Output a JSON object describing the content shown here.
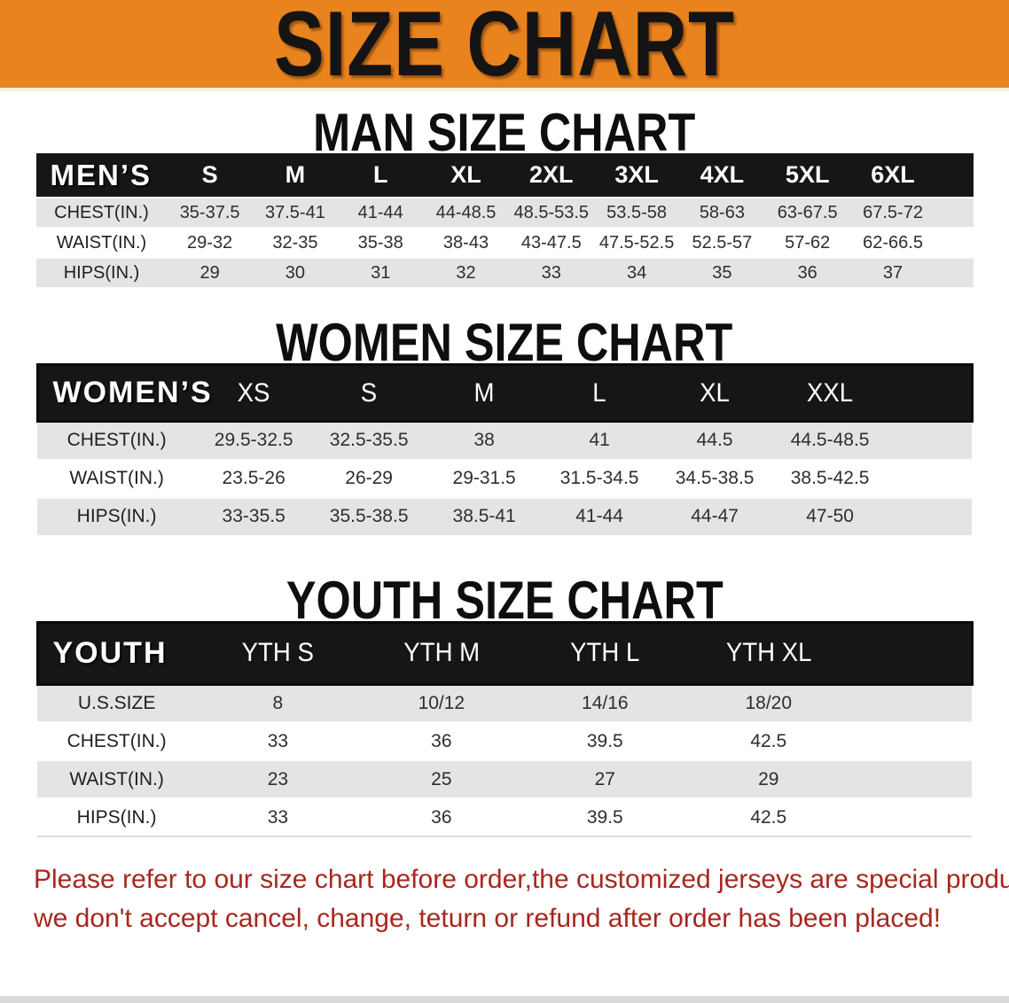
{
  "banner": {
    "title": "SIZE CHART",
    "bg_color": "#E9831E",
    "title_color": "#141414"
  },
  "colors": {
    "header_black": "#161616",
    "row_gray": "#E3E4E5",
    "row_white": "#FFFFFF",
    "footer_red": "#A7271E"
  },
  "sections": {
    "men": {
      "heading": "MAN SIZE CHART",
      "corner": "MEN’S",
      "sizes": [
        "S",
        "M",
        "L",
        "XL",
        "2XL",
        "3XL",
        "4XL",
        "5XL",
        "6XL"
      ],
      "rows": [
        {
          "label": "CHEST(IN.)",
          "values": [
            "35-37.5",
            "37.5-41",
            "41-44",
            "44-48.5",
            "48.5-53.5",
            "53.5-58",
            "58-63",
            "63-67.5",
            "67.5-72"
          ]
        },
        {
          "label": "WAIST(IN.)",
          "values": [
            "29-32",
            "32-35",
            "35-38",
            "38-43",
            "43-47.5",
            "47.5-52.5",
            "52.5-57",
            "57-62",
            "62-66.5"
          ]
        },
        {
          "label": "HIPS(IN.)",
          "values": [
            "29",
            "30",
            "31",
            "32",
            "33",
            "34",
            "35",
            "36",
            "37"
          ]
        }
      ]
    },
    "women": {
      "heading": "WOMEN SIZE CHART",
      "corner": "WOMEN’S",
      "sizes": [
        "XS",
        "S",
        "M",
        "L",
        "XL",
        "XXL"
      ],
      "rows": [
        {
          "label": "CHEST(IN.)",
          "values": [
            "29.5-32.5",
            "32.5-35.5",
            "38",
            "41",
            "44.5",
            "44.5-48.5"
          ]
        },
        {
          "label": "WAIST(IN.)",
          "values": [
            "23.5-26",
            "26-29",
            "29-31.5",
            "31.5-34.5",
            "34.5-38.5",
            "38.5-42.5"
          ]
        },
        {
          "label": "HIPS(IN.)",
          "values": [
            "33-35.5",
            "35.5-38.5",
            "38.5-41",
            "41-44",
            "44-47",
            "47-50"
          ]
        }
      ]
    },
    "youth": {
      "heading": "YOUTH SIZE CHART",
      "corner": "YOUTH",
      "sizes": [
        "YTH S",
        "YTH M",
        "YTH L",
        "YTH XL"
      ],
      "rows": [
        {
          "label": "U.S.SIZE",
          "values": [
            "8",
            "10/12",
            "14/16",
            "18/20"
          ]
        },
        {
          "label": "CHEST(IN.)",
          "values": [
            "33",
            "36",
            "39.5",
            "42.5"
          ]
        },
        {
          "label": "WAIST(IN.)",
          "values": [
            "23",
            "25",
            "27",
            "29"
          ]
        },
        {
          "label": "HIPS(IN.)",
          "values": [
            "33",
            "36",
            "39.5",
            "42.5"
          ]
        }
      ]
    }
  },
  "footer": {
    "line1": "Please refer to our size chart before order,the customized jerseys are special products,",
    "line2": "we don't accept cancel, change, teturn or refund after order has been placed!"
  }
}
